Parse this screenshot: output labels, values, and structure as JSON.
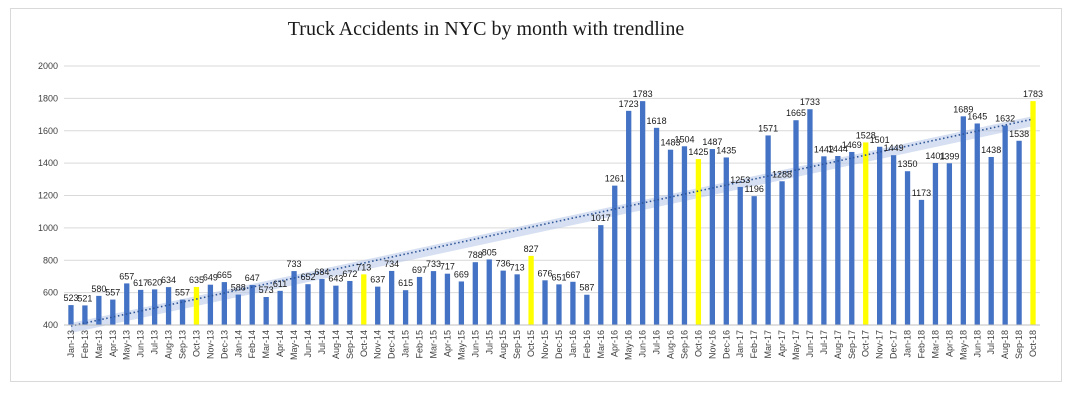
{
  "chart_data": {
    "type": "bar",
    "title": "Truck Accidents in NYC by month with trendline",
    "ylim": [
      400,
      2000
    ],
    "yticks": [
      400,
      600,
      800,
      1000,
      1200,
      1400,
      1600,
      1800,
      2000
    ],
    "grid": true,
    "colors": {
      "bar": "#4472c4",
      "highlight": "#ffff00",
      "trend": "#2f5597",
      "band": "#b4c7e7"
    },
    "highlighted_categories": [
      "Oct-13",
      "Oct-14",
      "Oct-15",
      "Oct-16",
      "Oct-17",
      "Oct-18"
    ],
    "trendline": {
      "type": "linear",
      "style": "dotted"
    },
    "categories": [
      "Jan-13",
      "Feb-13",
      "Mar-13",
      "Apr-13",
      "May-13",
      "Jun-13",
      "Jul-13",
      "Aug-13",
      "Sep-13",
      "Oct-13",
      "Nov-13",
      "Dec-13",
      "Jan-14",
      "Feb-14",
      "Mar-14",
      "Apr-14",
      "May-14",
      "Jun-14",
      "Jul-14",
      "Aug-14",
      "Sep-14",
      "Oct-14",
      "Nov-14",
      "Dec-14",
      "Jan-15",
      "Feb-15",
      "Mar-15",
      "Apr-15",
      "May-15",
      "Jun-15",
      "Jul-15",
      "Aug-15",
      "Sep-15",
      "Oct-15",
      "Nov-15",
      "Dec-15",
      "Jan-16",
      "Feb-16",
      "Mar-16",
      "Apr-16",
      "May-16",
      "Jun-16",
      "Jul-16",
      "Aug-16",
      "Sep-16",
      "Oct-16",
      "Nov-16",
      "Dec-16",
      "Jan-17",
      "Feb-17",
      "Mar-17",
      "Apr-17",
      "May-17",
      "Jun-17",
      "Jul-17",
      "Aug-17",
      "Sep-17",
      "Oct-17",
      "Nov-17",
      "Dec-17",
      "Jan-18",
      "Feb-18",
      "Mar-18",
      "Apr-18",
      "May-18",
      "Jun-18",
      "Jul-18",
      "Aug-18",
      "Sep-18",
      "Oct-18"
    ],
    "values": [
      523,
      521,
      580,
      557,
      657,
      617,
      620,
      634,
      557,
      635,
      649,
      665,
      588,
      647,
      573,
      611,
      733,
      652,
      684,
      643,
      672,
      713,
      637,
      734,
      615,
      697,
      733,
      717,
      669,
      788,
      805,
      736,
      713,
      827,
      676,
      651,
      667,
      587,
      1017,
      1261,
      1723,
      1783,
      1618,
      1483,
      1504,
      1425,
      1487,
      1435,
      1253,
      1196,
      1571,
      1288,
      1665,
      1733,
      1442,
      1444,
      1469,
      1528,
      1501,
      1449,
      1350,
      1173,
      1401,
      1399,
      1689,
      1645,
      1438,
      1632,
      1538,
      1783
    ],
    "tick_labels": [
      "Jan-13",
      "Feb-13",
      "Mar-13",
      "Apr-13",
      "May-13",
      "Jun-13",
      "Jul-13",
      "Aug-13",
      "Sep-13",
      "Oct-13",
      "Nov-13",
      "Dec-13",
      "Jan-14",
      "Feb-14",
      "Mar-14",
      "Apr-14",
      "May-14",
      "Jun-14",
      "Jul-14",
      "Aug-14",
      "Sep-14",
      "Oct-14",
      "Nov-14",
      "Dec-14",
      "Jan-15",
      "Feb-15",
      "Mar-15",
      "Apr-15",
      "May-15",
      "Jun-15",
      "Jul-15",
      "Aug-15",
      "Sep-15",
      "Oct-15",
      "Nov-15",
      "Dec-15",
      "Jan-16",
      "Feb-16",
      "Mar-16",
      "Apr-16",
      "May-16",
      "Jun-16",
      "Jul-16",
      "Aug-16",
      "Sep-16",
      "Oct-16",
      "Nov-16",
      "Dec-16",
      "Jan-17",
      "Feb-17",
      "Mar-17",
      "Apr-17",
      "May-17",
      "Jun-17",
      "Jul-17",
      "Aug-17",
      "Sep-17",
      "Oct-17",
      "Nov-17",
      "Dec-17",
      "Jan-18",
      "Feb-18",
      "Mar-18",
      "Apr-18",
      "May-18",
      "Jun-18",
      "Jul-18",
      "Aug-18",
      "Sep-18",
      "Oct-18"
    ]
  }
}
